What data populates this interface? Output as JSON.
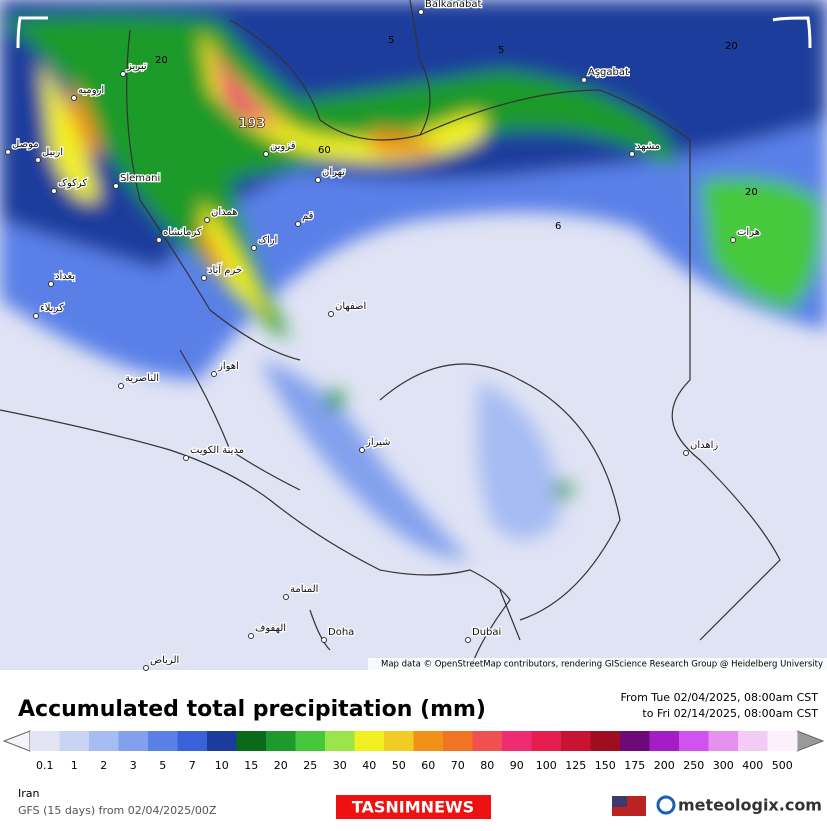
{
  "map": {
    "places": [
      "Balkanabat",
      "Aşgabat",
      "مشهد",
      "هرات",
      "تبریز",
      "ارومیه",
      "اربیل",
      "موصل",
      "کرکوک",
      "Slemani",
      "قزوین",
      "تهران",
      "همدان",
      "کرمانشاه",
      "اراک",
      "قم",
      "خرم آباد",
      "بغداد",
      "کربلاء",
      "اصفهان",
      "اهواز",
      "الناصرية",
      "مدينة الكويت",
      "شیراز",
      "زاهدان",
      "المنامة",
      "الهفوف",
      "Doha",
      "Dubai",
      "الرياض"
    ],
    "contour_labels": [
      "5",
      "20",
      "20",
      "60",
      "6",
      "20",
      "5"
    ],
    "max_label": "193",
    "attribution": "Map data © OpenStreetMap contributors, rendering GIScience Research Group @ Heidelberg University"
  },
  "legend": {
    "title": "Accumulated total precipitation (mm)",
    "period_from": "From Tue 02/04/2025, 08:00am CST",
    "period_to": "to Fri 02/14/2025, 08:00am CST",
    "ticks": [
      "0.1",
      "1",
      "2",
      "3",
      "5",
      "7",
      "10",
      "15",
      "20",
      "25",
      "30",
      "40",
      "50",
      "60",
      "70",
      "80",
      "90",
      "100",
      "125",
      "150",
      "175",
      "200",
      "250",
      "300",
      "400",
      "500"
    ],
    "colors": [
      "#e4e4f4",
      "#c8d4f2",
      "#a6bcf2",
      "#82a0ee",
      "#5a80e8",
      "#3a62d8",
      "#1c3c9c",
      "#0a6a1a",
      "#1e9a2a",
      "#46c83c",
      "#9ae64a",
      "#f2f020",
      "#f0cc24",
      "#f09218",
      "#f07424",
      "#f05050",
      "#f02c70",
      "#e61e50",
      "#c81432",
      "#9e0e1e",
      "#6e0a78",
      "#a41ec8",
      "#d052f0",
      "#e690f0",
      "#f2ccf6",
      "#fbf0fb"
    ]
  },
  "footer": {
    "region": "Iran",
    "model": "GFS (15 days) from 02/04/2025/00Z",
    "brand": "TASNIMNEWS",
    "logo": "meteologix.com"
  }
}
